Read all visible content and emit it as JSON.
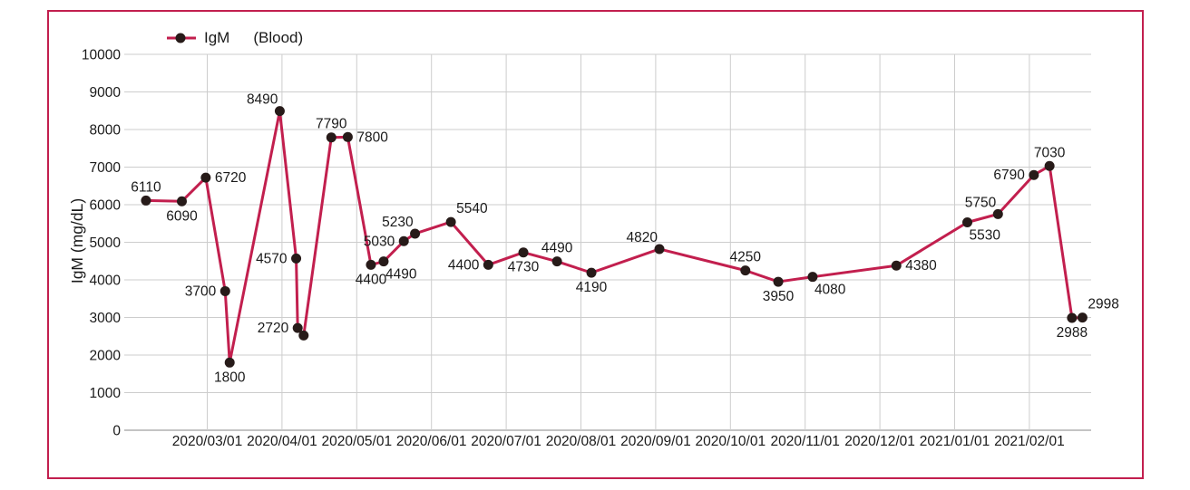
{
  "chart_data": {
    "type": "line",
    "title": "",
    "xlabel": "",
    "ylabel": "IgM (mg/dL)",
    "legend": {
      "series": "IgM",
      "qualifier": "(Blood)",
      "position": "top-left"
    },
    "grid": true,
    "ylim": [
      0,
      10000
    ],
    "y_tick_step": 1000,
    "y_tick_labels": [
      "0",
      "1000",
      "2000",
      "3000",
      "4000",
      "5000",
      "6000",
      "7000",
      "8000",
      "9000",
      "10000"
    ],
    "x_unit": "months_after_2020_03_01_tick",
    "x_tick_labels": [
      "2020/03/01",
      "2020/04/01",
      "2020/05/01",
      "2020/06/01",
      "2020/07/01",
      "2020/08/01",
      "2020/09/01",
      "2020/10/01",
      "2020/11/01",
      "2020/12/01",
      "2021/01/01",
      "2021/02/01"
    ],
    "colors": {
      "line": "#c21f4e",
      "marker": "#271b19",
      "grid": "#cdcdcd",
      "axis": "#b0b0b0",
      "text": "#1a1a1a",
      "frame_border": "#c21f4e"
    },
    "series": [
      {
        "name": "IgM",
        "points": [
          {
            "x": -0.82,
            "value": 6110,
            "label": "6110",
            "label_pos": "above"
          },
          {
            "x": -0.34,
            "value": 6090,
            "label": "6090",
            "label_pos": "below"
          },
          {
            "x": -0.02,
            "value": 6720,
            "label": "6720",
            "label_pos": "right"
          },
          {
            "x": 0.24,
            "value": 3700,
            "label": "3700",
            "label_pos": "left"
          },
          {
            "x": 0.3,
            "value": 1800,
            "label": "1800",
            "label_pos": "below"
          },
          {
            "x": 0.97,
            "value": 8490,
            "label": "8490",
            "label_pos": "above-left"
          },
          {
            "x": 1.19,
            "value": 4570,
            "label": "4570",
            "label_pos": "left"
          },
          {
            "x": 1.21,
            "value": 2720,
            "label": "2720",
            "label_pos": "left"
          },
          {
            "x": 1.29,
            "value": 2520,
            "label": "",
            "label_pos": "none"
          },
          {
            "x": 1.66,
            "value": 7790,
            "label": "7790",
            "label_pos": "above"
          },
          {
            "x": 1.88,
            "value": 7800,
            "label": "7800",
            "label_pos": "right"
          },
          {
            "x": 2.19,
            "value": 4400,
            "label": "4400",
            "label_pos": "below"
          },
          {
            "x": 2.36,
            "value": 4490,
            "label": "4490",
            "label_pos": "below-right"
          },
          {
            "x": 2.63,
            "value": 5030,
            "label": "5030",
            "label_pos": "left"
          },
          {
            "x": 2.78,
            "value": 5230,
            "label": "5230",
            "label_pos": "above-left"
          },
          {
            "x": 3.26,
            "value": 5540,
            "label": "5540",
            "label_pos": "above-right"
          },
          {
            "x": 3.76,
            "value": 4400,
            "label": "4400",
            "label_pos": "left"
          },
          {
            "x": 4.23,
            "value": 4730,
            "label": "4730",
            "label_pos": "below"
          },
          {
            "x": 4.68,
            "value": 4490,
            "label": "4490",
            "label_pos": "above"
          },
          {
            "x": 5.14,
            "value": 4190,
            "label": "4190",
            "label_pos": "below"
          },
          {
            "x": 6.05,
            "value": 4820,
            "label": "4820",
            "label_pos": "above-left"
          },
          {
            "x": 7.2,
            "value": 4250,
            "label": "4250",
            "label_pos": "above"
          },
          {
            "x": 7.64,
            "value": 3950,
            "label": "3950",
            "label_pos": "below"
          },
          {
            "x": 8.1,
            "value": 4080,
            "label": "4080",
            "label_pos": "below-right"
          },
          {
            "x": 9.22,
            "value": 4380,
            "label": "4380",
            "label_pos": "right"
          },
          {
            "x": 10.17,
            "value": 5530,
            "label": "5530",
            "label_pos": "below-right"
          },
          {
            "x": 10.58,
            "value": 5750,
            "label": "5750",
            "label_pos": "above-left"
          },
          {
            "x": 11.06,
            "value": 6790,
            "label": "6790",
            "label_pos": "left"
          },
          {
            "x": 11.27,
            "value": 7030,
            "label": "7030",
            "label_pos": "above"
          },
          {
            "x": 11.57,
            "value": 2988,
            "label": "2988",
            "label_pos": "below"
          },
          {
            "x": 11.71,
            "value": 2998,
            "label": "2998",
            "label_pos": "above-right"
          }
        ]
      }
    ]
  }
}
